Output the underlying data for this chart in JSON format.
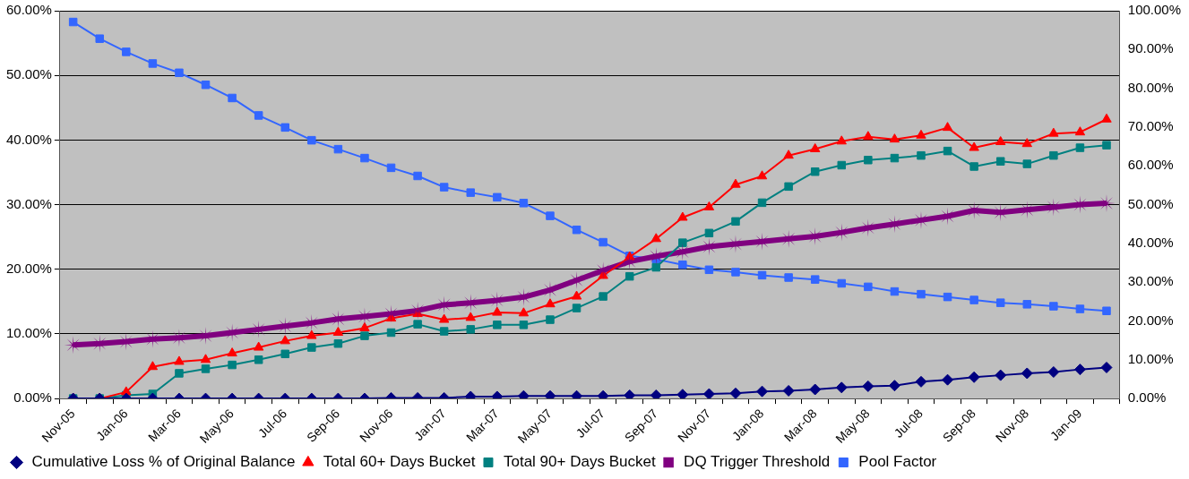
{
  "chart_data": {
    "type": "line",
    "categories": [
      "Nov-05",
      null,
      "Jan-06",
      null,
      "Mar-06",
      null,
      "May-06",
      null,
      "Jul-06",
      null,
      "Sep-06",
      null,
      "Nov-06",
      null,
      "Jan-07",
      null,
      "Mar-07",
      null,
      "May-07",
      null,
      "Jul-07",
      null,
      "Sep-07",
      null,
      "Nov-07",
      null,
      "Jan-08",
      null,
      "Mar-08",
      null,
      "May-08",
      null,
      "Jul-08",
      null,
      "Sep-08",
      null,
      "Nov-08",
      null,
      "Jan-09",
      null
    ],
    "series": [
      {
        "name": "Cumulative Loss % of Original Balance",
        "color": "#000080",
        "marker": "diamond",
        "values": [
          0,
          0,
          0,
          0,
          0,
          0,
          0,
          0,
          0,
          0,
          0,
          0,
          0.1,
          0.1,
          0.1,
          0.3,
          0.3,
          0.4,
          0.4,
          0.4,
          0.4,
          0.5,
          0.5,
          0.6,
          0.7,
          0.8,
          1.1,
          1.2,
          1.4,
          1.7,
          1.9,
          2.0,
          2.6,
          2.9,
          3.3,
          3.6,
          3.9,
          4.1,
          4.5,
          4.8
        ]
      },
      {
        "name": "Total 60+ Days Bucket",
        "color": "#ff0000",
        "marker": "triangle",
        "values": [
          0,
          0,
          1.0,
          4.9,
          5.7,
          6.0,
          7.0,
          7.9,
          8.9,
          9.7,
          10.2,
          10.9,
          12.4,
          13.1,
          12.2,
          12.5,
          13.3,
          13.2,
          14.6,
          15.8,
          19.0,
          21.9,
          24.7,
          28.0,
          29.6,
          33.1,
          34.4,
          37.6,
          38.6,
          39.8,
          40.5,
          40.1,
          40.7,
          41.9,
          38.8,
          39.7,
          39.4,
          41.0,
          41.2,
          43.2
        ]
      },
      {
        "name": "Total 90+ Days Bucket",
        "color": "#008080",
        "marker": "square",
        "values": [
          0,
          0,
          0.5,
          0.7,
          3.9,
          4.6,
          5.2,
          6.0,
          6.9,
          7.9,
          8.5,
          9.7,
          10.2,
          11.5,
          10.4,
          10.7,
          11.4,
          11.4,
          12.2,
          14.0,
          15.8,
          18.9,
          20.3,
          24.1,
          25.6,
          27.4,
          30.3,
          32.8,
          35.1,
          36.1,
          36.9,
          37.2,
          37.6,
          38.3,
          35.9,
          36.7,
          36.3,
          37.6,
          38.8,
          39.2
        ]
      },
      {
        "name": "DQ Trigger Threshold",
        "color": "#800080",
        "marker": "star",
        "values": [
          8.3,
          8.5,
          8.8,
          9.2,
          9.4,
          9.7,
          10.2,
          10.7,
          11.2,
          11.7,
          12.3,
          12.7,
          13.1,
          13.6,
          14.5,
          14.8,
          15.2,
          15.7,
          16.8,
          18.3,
          19.8,
          21.2,
          22.0,
          22.7,
          23.5,
          23.9,
          24.3,
          24.7,
          25.1,
          25.7,
          26.4,
          27.0,
          27.6,
          28.2,
          29.1,
          28.8,
          29.2,
          29.6,
          30.0,
          30.2
        ]
      },
      {
        "name": "Pool Factor",
        "color": "#3366ff",
        "marker": "square",
        "axis": "y2",
        "values": [
          97.1,
          92.8,
          89.4,
          86.4,
          84.0,
          80.9,
          77.5,
          73.0,
          69.9,
          66.6,
          64.3,
          62.0,
          59.5,
          57.4,
          54.5,
          53.1,
          51.9,
          50.4,
          47.1,
          43.5,
          40.3,
          36.8,
          35.9,
          34.5,
          33.2,
          32.6,
          31.8,
          31.2,
          30.7,
          29.7,
          28.8,
          27.6,
          26.9,
          26.2,
          25.4,
          24.7,
          24.3,
          23.8,
          23.1,
          22.6
        ]
      }
    ],
    "ylim": [
      0,
      60
    ],
    "yticks": [
      {
        "value": 0,
        "label": "0.00%"
      },
      {
        "value": 10,
        "label": "10.00%"
      },
      {
        "value": 20,
        "label": "20.00%"
      },
      {
        "value": 30,
        "label": "30.00%"
      },
      {
        "value": 40,
        "label": "40.00%"
      },
      {
        "value": 50,
        "label": "50.00%"
      },
      {
        "value": 60,
        "label": "60.00%"
      }
    ],
    "y2lim": [
      0,
      100
    ],
    "y2ticks": [
      {
        "value": 0,
        "label": "0.00%"
      },
      {
        "value": 10,
        "label": "10.00%"
      },
      {
        "value": 20,
        "label": "20.00%"
      },
      {
        "value": 30,
        "label": "30.00%"
      },
      {
        "value": 40,
        "label": "40.00%"
      },
      {
        "value": 50,
        "label": "50.00%"
      },
      {
        "value": 60,
        "label": "60.00%"
      },
      {
        "value": 70,
        "label": "70.00%"
      },
      {
        "value": 80,
        "label": "80.00%"
      },
      {
        "value": 90,
        "label": "90.00%"
      },
      {
        "value": 100,
        "label": "100.00%"
      }
    ],
    "grid": "y",
    "legend": "bottom"
  }
}
